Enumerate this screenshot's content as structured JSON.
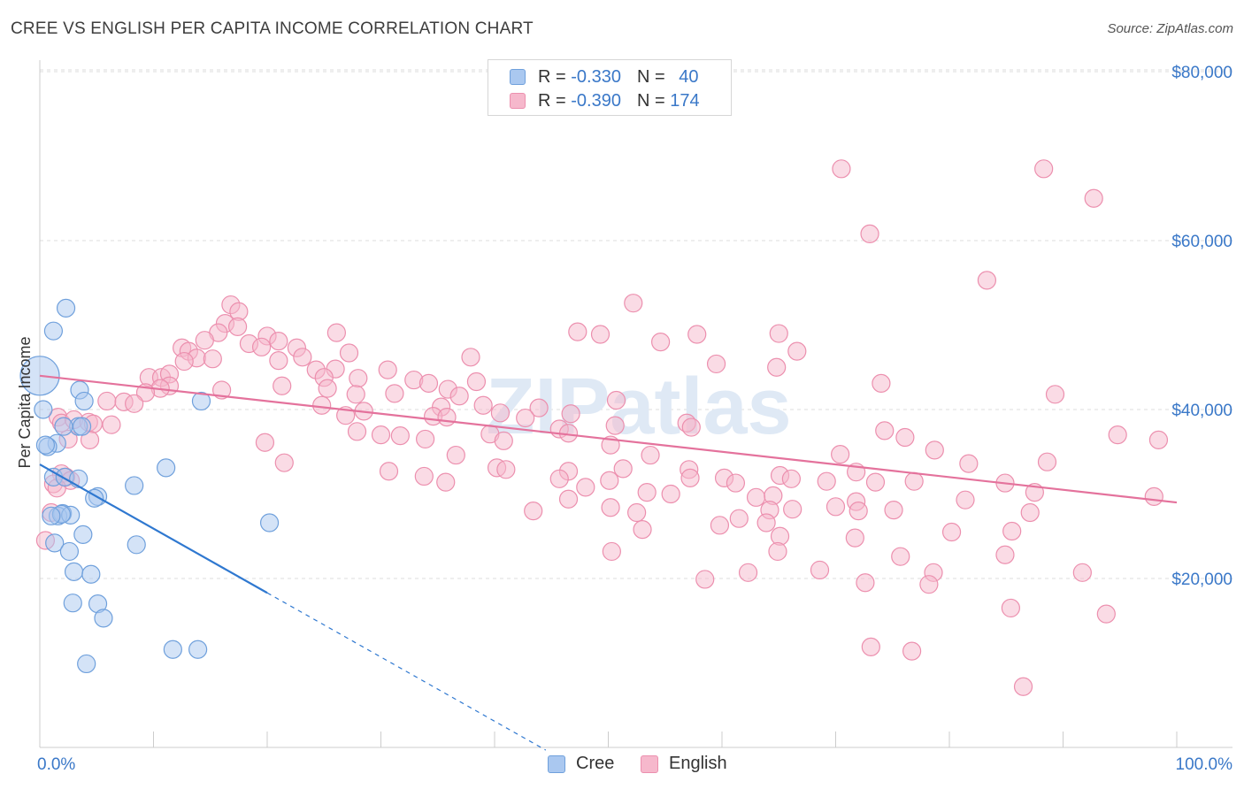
{
  "header": {
    "title": "CREE VS ENGLISH PER CAPITA INCOME CORRELATION CHART",
    "source": "Source: ZipAtlas.com"
  },
  "legend": {
    "cree": {
      "r_label": "R =",
      "r_value": "-0.330",
      "n_label": "N =",
      "n_value": "40"
    },
    "english": {
      "r_label": "R =",
      "r_value": "-0.390",
      "n_label": "N =",
      "n_value": "174"
    }
  },
  "bottom_legend": {
    "cree": "Cree",
    "english": "English"
  },
  "watermark": "ZIPatlas",
  "colors": {
    "cree_fill": "#aac8f0",
    "cree_stroke": "#6fa0dc",
    "cree_line": "#2f78d0",
    "english_fill": "#f6b8cc",
    "english_stroke": "#ec8fae",
    "english_line": "#e4729c",
    "axis_text": "#3a78c8",
    "grid": "#dddddd"
  },
  "chart_data": {
    "type": "scatter",
    "title": "CREE VS ENGLISH PER CAPITA INCOME CORRELATION CHART",
    "ylabel": "Per Capita Income",
    "xlabel": "",
    "xlim": [
      0,
      100
    ],
    "ylim": [
      0,
      82000
    ],
    "x_tick_labels": [
      "0.0%",
      "100.0%"
    ],
    "y_ticks": [
      20000,
      40000,
      60000,
      80000
    ],
    "y_tick_labels": [
      "$20,000",
      "$40,000",
      "$60,000",
      "$80,000"
    ],
    "series": [
      {
        "name": "Cree",
        "trend": {
          "x0": 0,
          "y0": 33500,
          "x1": 20,
          "y1": 18300,
          "dash_to_x": 44.5
        },
        "points": [
          [
            0,
            44000,
            "L"
          ],
          [
            2.3,
            52000
          ],
          [
            1.2,
            49300
          ],
          [
            0.3,
            40000
          ],
          [
            3.5,
            42300
          ],
          [
            3.9,
            41000
          ],
          [
            14.2,
            41000
          ],
          [
            3.4,
            38000
          ],
          [
            3.7,
            38000
          ],
          [
            2.1,
            38000
          ],
          [
            1.5,
            36000
          ],
          [
            0.7,
            35600
          ],
          [
            0.5,
            35800
          ],
          [
            11.1,
            33100
          ],
          [
            1.2,
            32000
          ],
          [
            2.2,
            32000
          ],
          [
            3.4,
            31800
          ],
          [
            8.3,
            31000
          ],
          [
            5.1,
            29700
          ],
          [
            4.8,
            29500
          ],
          [
            2.0,
            27700
          ],
          [
            1.6,
            27400
          ],
          [
            2.7,
            27500
          ],
          [
            1.9,
            27600
          ],
          [
            1.0,
            27400
          ],
          [
            20.2,
            26600
          ],
          [
            3.8,
            25200
          ],
          [
            1.3,
            24200
          ],
          [
            8.5,
            24000
          ],
          [
            2.6,
            23200
          ],
          [
            3.0,
            20800
          ],
          [
            4.5,
            20500
          ],
          [
            2.9,
            17100
          ],
          [
            5.1,
            17000
          ],
          [
            5.6,
            15300
          ],
          [
            11.7,
            11600
          ],
          [
            13.9,
            11600
          ],
          [
            4.1,
            9900
          ]
        ]
      },
      {
        "name": "English",
        "trend": {
          "x0": 0,
          "y0": 44000,
          "x1": 100,
          "y1": 29000
        },
        "points": [
          [
            70.5,
            68500
          ],
          [
            88.3,
            68500
          ],
          [
            92.7,
            65000
          ],
          [
            73.0,
            60800
          ],
          [
            83.3,
            55300
          ],
          [
            16.8,
            52400
          ],
          [
            17.5,
            51600
          ],
          [
            52.2,
            52600
          ],
          [
            16.3,
            50200
          ],
          [
            17.4,
            49800
          ],
          [
            15.7,
            49100
          ],
          [
            65.0,
            49000
          ],
          [
            47.3,
            49200
          ],
          [
            49.3,
            48900
          ],
          [
            57.8,
            48900
          ],
          [
            26.1,
            49100
          ],
          [
            14.5,
            48200
          ],
          [
            20.0,
            48700
          ],
          [
            18.4,
            47800
          ],
          [
            12.5,
            47300
          ],
          [
            13.1,
            46900
          ],
          [
            19.5,
            47400
          ],
          [
            54.6,
            48000
          ],
          [
            22.6,
            47300
          ],
          [
            21.0,
            48100
          ],
          [
            23.1,
            46200
          ],
          [
            13.8,
            46100
          ],
          [
            12.7,
            45700
          ],
          [
            15.2,
            46000
          ],
          [
            21.0,
            45800
          ],
          [
            37.9,
            46200
          ],
          [
            66.6,
            46900
          ],
          [
            27.2,
            46700
          ],
          [
            59.5,
            45400
          ],
          [
            64.8,
            45000
          ],
          [
            26.0,
            44800
          ],
          [
            30.6,
            44700
          ],
          [
            24.3,
            44700
          ],
          [
            9.6,
            43800
          ],
          [
            10.7,
            43800
          ],
          [
            11.4,
            44200
          ],
          [
            25.0,
            43800
          ],
          [
            28.0,
            43700
          ],
          [
            32.9,
            43500
          ],
          [
            34.2,
            43100
          ],
          [
            11.4,
            42800
          ],
          [
            10.6,
            42500
          ],
          [
            21.3,
            42800
          ],
          [
            25.3,
            42500
          ],
          [
            35.9,
            42400
          ],
          [
            38.4,
            43300
          ],
          [
            74.0,
            43100
          ],
          [
            9.3,
            42000
          ],
          [
            16.0,
            42300
          ],
          [
            27.8,
            41800
          ],
          [
            31.2,
            41900
          ],
          [
            36.9,
            41600
          ],
          [
            50.7,
            41100
          ],
          [
            89.3,
            41800
          ],
          [
            5.9,
            41000
          ],
          [
            7.4,
            40900
          ],
          [
            8.3,
            40700
          ],
          [
            24.8,
            40500
          ],
          [
            35.3,
            40300
          ],
          [
            39.0,
            40500
          ],
          [
            43.9,
            40200
          ],
          [
            28.5,
            39800
          ],
          [
            40.5,
            39600
          ],
          [
            46.7,
            39500
          ],
          [
            26.9,
            39300
          ],
          [
            34.6,
            39200
          ],
          [
            35.8,
            39100
          ],
          [
            42.7,
            39000
          ],
          [
            1.6,
            39100
          ],
          [
            1.9,
            38400
          ],
          [
            3.0,
            38800
          ],
          [
            4.3,
            38500
          ],
          [
            4.7,
            38300
          ],
          [
            6.3,
            38200
          ],
          [
            50.6,
            38100
          ],
          [
            56.9,
            38400
          ],
          [
            57.3,
            37900
          ],
          [
            74.3,
            37500
          ],
          [
            27.9,
            37400
          ],
          [
            30.0,
            37000
          ],
          [
            45.7,
            37700
          ],
          [
            31.7,
            36900
          ],
          [
            39.6,
            37100
          ],
          [
            46.5,
            37200
          ],
          [
            2.5,
            36500
          ],
          [
            4.4,
            36400
          ],
          [
            19.8,
            36100
          ],
          [
            76.1,
            36700
          ],
          [
            94.8,
            37000
          ],
          [
            98.4,
            36400
          ],
          [
            33.9,
            36500
          ],
          [
            40.8,
            36300
          ],
          [
            50.2,
            35800
          ],
          [
            36.6,
            34600
          ],
          [
            53.7,
            34600
          ],
          [
            70.4,
            34700
          ],
          [
            78.7,
            35200
          ],
          [
            81.7,
            33600
          ],
          [
            88.6,
            33800
          ],
          [
            57.1,
            32900
          ],
          [
            1.9,
            32400
          ],
          [
            21.5,
            33700
          ],
          [
            65.1,
            32200
          ],
          [
            71.8,
            32600
          ],
          [
            40.2,
            33100
          ],
          [
            41.0,
            32900
          ],
          [
            46.5,
            32700
          ],
          [
            51.3,
            33000
          ],
          [
            2.3,
            32000
          ],
          [
            2.7,
            31600
          ],
          [
            30.7,
            32700
          ],
          [
            33.8,
            32100
          ],
          [
            45.7,
            31800
          ],
          [
            57.2,
            31900
          ],
          [
            60.2,
            31900
          ],
          [
            66.1,
            31800
          ],
          [
            69.2,
            31500
          ],
          [
            73.5,
            31400
          ],
          [
            84.9,
            31300
          ],
          [
            1.2,
            31200
          ],
          [
            1.5,
            30700
          ],
          [
            35.7,
            31400
          ],
          [
            50.1,
            31600
          ],
          [
            61.2,
            31300
          ],
          [
            76.9,
            31500
          ],
          [
            87.5,
            30200
          ],
          [
            48.0,
            30800
          ],
          [
            53.4,
            30200
          ],
          [
            55.5,
            30000
          ],
          [
            63.0,
            29600
          ],
          [
            64.5,
            29800
          ],
          [
            71.8,
            29100
          ],
          [
            81.4,
            29300
          ],
          [
            98.0,
            29700
          ],
          [
            64.2,
            28100
          ],
          [
            66.2,
            28200
          ],
          [
            70.0,
            28500
          ],
          [
            72.0,
            28000
          ],
          [
            75.1,
            28100
          ],
          [
            87.1,
            27800
          ],
          [
            1.0,
            27800
          ],
          [
            46.5,
            29400
          ],
          [
            50.2,
            28400
          ],
          [
            52.5,
            27800
          ],
          [
            43.4,
            28000
          ],
          [
            53.0,
            25800
          ],
          [
            59.8,
            26300
          ],
          [
            61.5,
            27100
          ],
          [
            63.9,
            26600
          ],
          [
            65.1,
            25000
          ],
          [
            71.7,
            24800
          ],
          [
            80.2,
            25500
          ],
          [
            85.5,
            25600
          ],
          [
            0.5,
            24500
          ],
          [
            50.3,
            23200
          ],
          [
            64.9,
            23200
          ],
          [
            75.7,
            22600
          ],
          [
            84.9,
            22800
          ],
          [
            68.6,
            21000
          ],
          [
            62.3,
            20700
          ],
          [
            78.6,
            20700
          ],
          [
            91.7,
            20700
          ],
          [
            58.5,
            19900
          ],
          [
            72.6,
            19500
          ],
          [
            78.2,
            19300
          ],
          [
            85.4,
            16500
          ],
          [
            93.8,
            15800
          ],
          [
            76.7,
            11400
          ],
          [
            73.1,
            11900
          ],
          [
            86.5,
            7200
          ]
        ]
      }
    ]
  }
}
